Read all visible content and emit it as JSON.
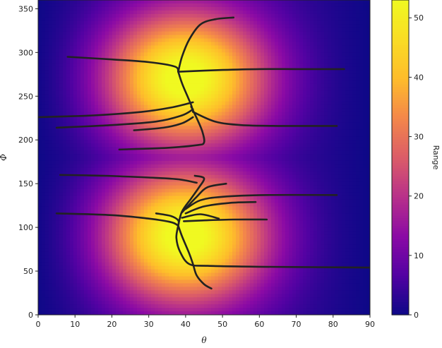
{
  "chart_data": {
    "type": "heatmap",
    "title": "",
    "xlabel": "θ",
    "ylabel": "Φ",
    "colorbar_label": "Range",
    "colormap": "plasma",
    "xlim": [
      0,
      90
    ],
    "ylim": [
      0,
      360
    ],
    "clim": [
      0,
      53
    ],
    "x_ticks": [
      0,
      10,
      20,
      30,
      40,
      50,
      60,
      70,
      80,
      90
    ],
    "y_ticks": [
      0,
      50,
      100,
      150,
      200,
      250,
      300,
      350
    ],
    "colorbar_ticks": [
      0,
      10,
      20,
      30,
      40,
      50
    ],
    "field_peaks": [
      {
        "theta": 38,
        "phi": 270,
        "value": 53
      },
      {
        "theta": 38,
        "phi": 90,
        "value": 53
      }
    ],
    "trajectory_color": "#222222",
    "trajectories": [
      {
        "points": [
          [
            8,
            295
          ],
          [
            20,
            292
          ],
          [
            30,
            289
          ],
          [
            37,
            284
          ],
          [
            38,
            278
          ]
        ]
      },
      {
        "points": [
          [
            38,
            278
          ],
          [
            50,
            280
          ],
          [
            60,
            281
          ],
          [
            70,
            281
          ],
          [
            83,
            281
          ]
        ]
      },
      {
        "points": [
          [
            38,
            278
          ],
          [
            39,
            295
          ],
          [
            41,
            315
          ],
          [
            44,
            332
          ],
          [
            48,
            338
          ],
          [
            53,
            340
          ]
        ]
      },
      {
        "points": [
          [
            38,
            278
          ],
          [
            39,
            265
          ],
          [
            40.5,
            250
          ],
          [
            41.5,
            240
          ],
          [
            42,
            233
          ]
        ]
      },
      {
        "points": [
          [
            0,
            226
          ],
          [
            15,
            228
          ],
          [
            28,
            232
          ],
          [
            36,
            237
          ],
          [
            42,
            243
          ]
        ]
      },
      {
        "points": [
          [
            5,
            214
          ],
          [
            20,
            217
          ],
          [
            32,
            221
          ],
          [
            39,
            228
          ],
          [
            42,
            235
          ]
        ]
      },
      {
        "points": [
          [
            26,
            211
          ],
          [
            34,
            214
          ],
          [
            39,
            219
          ],
          [
            42,
            226
          ]
        ]
      },
      {
        "points": [
          [
            42,
            232
          ],
          [
            48,
            221
          ],
          [
            55,
            217
          ],
          [
            65,
            216
          ],
          [
            81,
            216
          ]
        ]
      },
      {
        "points": [
          [
            22,
            189
          ],
          [
            35,
            191
          ],
          [
            43,
            194
          ],
          [
            45,
            197
          ],
          [
            44.5,
            210
          ],
          [
            43,
            225
          ],
          [
            41.5,
            238
          ]
        ]
      },
      {
        "points": [
          [
            6,
            160
          ],
          [
            18,
            159
          ],
          [
            30,
            157
          ],
          [
            38,
            155
          ],
          [
            43,
            151
          ]
        ]
      },
      {
        "points": [
          [
            38,
            102
          ],
          [
            39,
            118
          ],
          [
            41.5,
            133
          ],
          [
            43.5,
            145
          ],
          [
            45,
            156
          ],
          [
            42.5,
            159
          ]
        ]
      },
      {
        "points": [
          [
            39,
            117
          ],
          [
            43,
            135
          ],
          [
            46,
            146
          ],
          [
            51,
            150
          ]
        ]
      },
      {
        "points": [
          [
            40,
            121
          ],
          [
            44,
            131
          ],
          [
            50,
            135
          ],
          [
            62,
            137
          ],
          [
            81,
            137
          ]
        ]
      },
      {
        "points": [
          [
            40,
            116
          ],
          [
            45,
            124
          ],
          [
            52,
            128
          ],
          [
            59,
            129
          ]
        ]
      },
      {
        "points": [
          [
            39,
            111
          ],
          [
            44,
            115
          ],
          [
            49,
            110
          ]
        ]
      },
      {
        "points": [
          [
            39.5,
            107
          ],
          [
            45,
            108
          ],
          [
            53,
            109
          ],
          [
            62,
            109
          ]
        ]
      },
      {
        "points": [
          [
            32,
            116
          ],
          [
            36,
            113
          ],
          [
            38,
            108
          ],
          [
            38,
            102
          ]
        ]
      },
      {
        "points": [
          [
            5,
            116
          ],
          [
            20,
            114
          ],
          [
            30,
            110
          ],
          [
            36,
            106
          ],
          [
            38,
            102
          ]
        ]
      },
      {
        "points": [
          [
            38,
            102
          ],
          [
            37.5,
            88
          ],
          [
            38.5,
            72
          ],
          [
            41,
            58
          ],
          [
            46,
            56
          ],
          [
            60,
            55
          ],
          [
            75,
            54.5
          ],
          [
            90,
            54
          ]
        ]
      },
      {
        "points": [
          [
            38,
            102
          ],
          [
            39,
            90
          ],
          [
            41,
            70
          ],
          [
            42,
            58
          ],
          [
            43,
            45
          ],
          [
            45,
            35
          ],
          [
            47,
            30
          ]
        ]
      }
    ]
  }
}
